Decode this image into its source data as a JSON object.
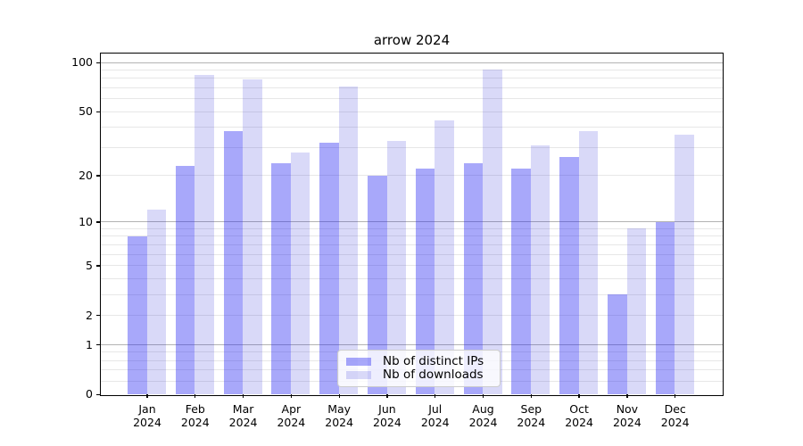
{
  "chart_data": {
    "type": "bar",
    "title": "arrow 2024",
    "categories": [
      "Jan",
      "Feb",
      "Mar",
      "Apr",
      "May",
      "Jun",
      "Jul",
      "Aug",
      "Sep",
      "Oct",
      "Nov",
      "Dec"
    ],
    "category_year": "2024",
    "series": [
      {
        "name": "Nb of distinct IPs",
        "color": "rgba(37,37,242,0.40)",
        "values": [
          8,
          23,
          38,
          24,
          32,
          20,
          22,
          24,
          22,
          26,
          3,
          10
        ]
      },
      {
        "name": "Nb of downloads",
        "color": "rgba(18,18,211,0.16)",
        "values": [
          12,
          84,
          79,
          28,
          71,
          33,
          44,
          90,
          31,
          38,
          9,
          36
        ]
      }
    ],
    "xlabel": "",
    "ylabel": "",
    "yscale": "log1p",
    "ylim": [
      0,
      113
    ],
    "y_ticks": [
      0,
      1,
      2,
      5,
      10,
      20,
      50,
      100
    ],
    "y_major_gridlines": [
      1,
      10,
      100
    ],
    "y_minor_gridlines": [
      0.2,
      0.4,
      0.6,
      0.8,
      2,
      3,
      4,
      5,
      6,
      7,
      8,
      9,
      20,
      30,
      40,
      50,
      60,
      70,
      80,
      90
    ],
    "grid": "on",
    "legend_position": "lower center"
  },
  "colors": {
    "major_grid": "#b3b3b3",
    "minor_grid": "#e7e7e7",
    "spine": "#000000",
    "legend_border": "#cccccc",
    "legend_background": "rgba(255,255,255,0.8)"
  }
}
